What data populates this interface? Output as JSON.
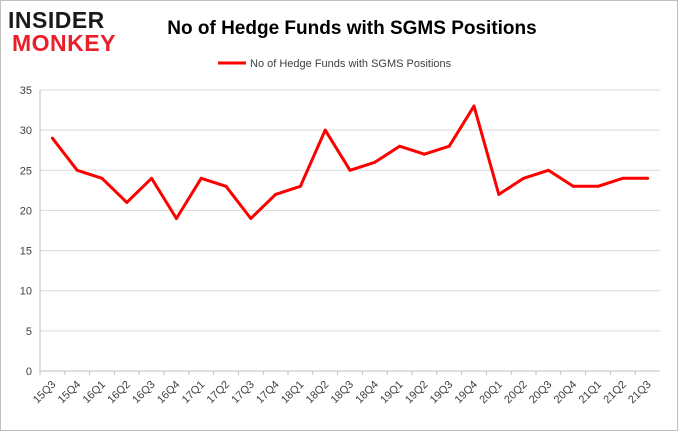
{
  "logo": {
    "line1": "INSIDER",
    "line2": "MONKEY"
  },
  "colors": {
    "series": "#ff0000",
    "grid": "#d9d9d9",
    "axis_text": "#404040",
    "logo_dark": "#1a1a1a",
    "logo_red": "#e8202a"
  },
  "chart_data": {
    "type": "line",
    "title": "No of Hedge Funds with SGMS Positions",
    "xlabel": "",
    "ylabel": "",
    "ylim": [
      0,
      35
    ],
    "yticks": [
      0,
      5,
      10,
      15,
      20,
      25,
      30,
      35
    ],
    "grid": true,
    "legend_position": "top-center",
    "categories": [
      "15Q3",
      "15Q4",
      "16Q1",
      "16Q2",
      "16Q3",
      "16Q4",
      "17Q1",
      "17Q2",
      "17Q3",
      "17Q4",
      "18Q1",
      "18Q2",
      "18Q3",
      "18Q4",
      "19Q1",
      "19Q2",
      "19Q3",
      "19Q4",
      "20Q1",
      "20Q2",
      "20Q3",
      "20Q4",
      "21Q1",
      "21Q2",
      "21Q3"
    ],
    "series": [
      {
        "name": "No of Hedge Funds with SGMS Positions",
        "values": [
          29,
          25,
          24,
          21,
          24,
          19,
          24,
          23,
          19,
          22,
          23,
          30,
          25,
          26,
          28,
          27,
          28,
          33,
          22,
          24,
          25,
          23,
          23,
          24,
          24
        ]
      }
    ]
  }
}
